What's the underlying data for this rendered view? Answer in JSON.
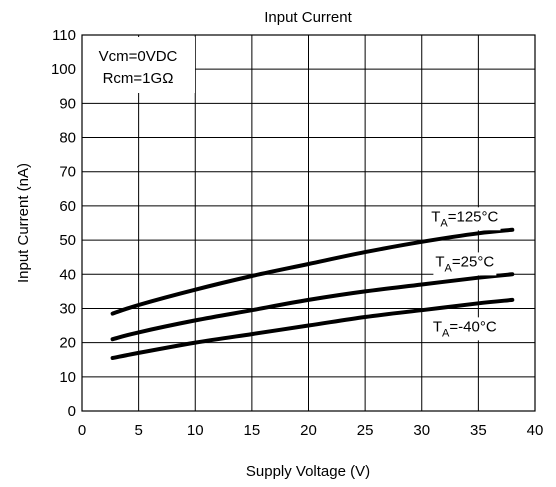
{
  "chart_data": {
    "type": "line",
    "title": "Input Current",
    "xlabel": "Supply Voltage (V)",
    "ylabel": "Input Current (nA)",
    "xlim": [
      0,
      40
    ],
    "ylim": [
      0,
      110
    ],
    "xticks": [
      "0",
      "5",
      "10",
      "15",
      "20",
      "25",
      "30",
      "35",
      "40"
    ],
    "yticks": [
      "0",
      "10",
      "20",
      "30",
      "40",
      "50",
      "60",
      "70",
      "80",
      "90",
      "100",
      "110"
    ],
    "grid": true,
    "annotations": [
      "Vcm=0VDC",
      "Rcm=1GΩ"
    ],
    "series": [
      {
        "name": "TA=125°C",
        "label_main": "T",
        "label_sub": "A",
        "label_rest": "=125°C",
        "x": [
          2.7,
          5,
          10,
          15,
          20,
          25,
          30,
          35,
          38
        ],
        "y": [
          28.5,
          31.0,
          35.5,
          39.5,
          43.0,
          46.5,
          49.5,
          52.0,
          53.0
        ]
      },
      {
        "name": "TA=25°C",
        "label_main": "T",
        "label_sub": "A",
        "label_rest": "=25°C",
        "x": [
          2.7,
          5,
          10,
          15,
          20,
          25,
          30,
          35,
          38
        ],
        "y": [
          21.0,
          23.0,
          26.5,
          29.5,
          32.5,
          35.0,
          37.0,
          39.0,
          40.0
        ]
      },
      {
        "name": "TA=-40°C",
        "label_main": "T",
        "label_sub": "A",
        "label_rest": "=-40°C",
        "x": [
          2.7,
          5,
          10,
          15,
          20,
          25,
          30,
          35,
          38
        ],
        "y": [
          15.5,
          17.0,
          20.0,
          22.5,
          25.0,
          27.5,
          29.5,
          31.5,
          32.5
        ]
      }
    ]
  }
}
